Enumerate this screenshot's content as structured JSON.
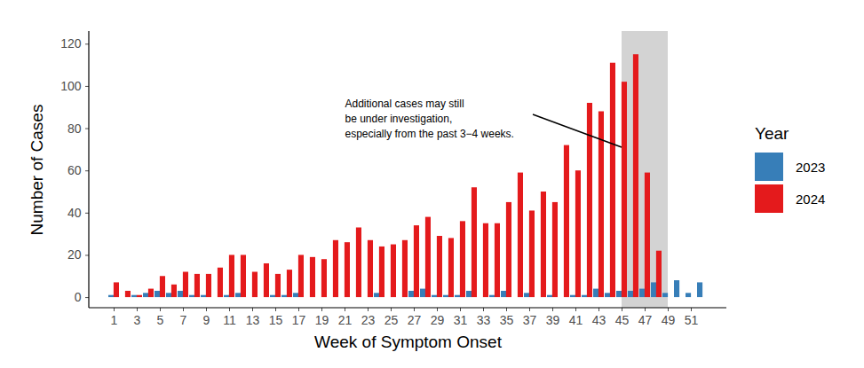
{
  "chart_data": {
    "type": "bar",
    "x_label": "Week of Symptom Onset",
    "y_label": "Number of Cases",
    "categories": [
      1,
      null,
      3,
      null,
      5,
      null,
      7,
      null,
      9,
      null,
      11,
      null,
      13,
      null,
      15,
      null,
      17,
      null,
      19,
      null,
      21,
      null,
      23,
      null,
      25,
      null,
      27,
      null,
      29,
      null,
      31,
      null,
      33,
      null,
      35,
      null,
      37,
      null,
      39,
      null,
      41,
      null,
      43,
      null,
      45,
      null,
      47,
      null,
      49,
      null,
      51,
      null
    ],
    "series": [
      {
        "name": "2023",
        "color": "#377EB8",
        "values": [
          1,
          0,
          1,
          2,
          3,
          2,
          3,
          1,
          1,
          0,
          1,
          2,
          0,
          0,
          1,
          1,
          2,
          0,
          0,
          0,
          0,
          0,
          0,
          2,
          0,
          0,
          3,
          4,
          1,
          1,
          1,
          3,
          0,
          1,
          3,
          0,
          2,
          0,
          1,
          0,
          1,
          1,
          4,
          2,
          3,
          3,
          4,
          7,
          2,
          8,
          2,
          7
        ]
      },
      {
        "name": "2024",
        "color": "#E41A1C",
        "values": [
          7,
          3,
          1,
          4,
          10,
          6,
          12,
          11,
          11,
          14,
          20,
          20,
          12,
          16,
          11,
          13,
          20,
          19,
          18,
          27,
          26,
          33,
          27,
          24,
          25,
          27,
          34,
          38,
          29,
          28,
          36,
          52,
          35,
          35,
          45,
          59,
          41,
          50,
          45,
          72,
          60,
          92,
          88,
          111,
          102,
          115,
          59,
          22,
          null,
          null,
          null,
          null
        ]
      }
    ],
    "ylim": [
      -5,
      126
    ],
    "yticks": [
      0,
      20,
      40,
      60,
      80,
      100,
      120
    ],
    "legend": "right",
    "legend_title": "Year",
    "highlight_weeks": [
      45,
      49
    ],
    "annotations": [
      {
        "text": "Additional cases may still\nbe under investigation,\nespecially from the past 3−4 weeks.",
        "x": 45,
        "y": 71
      }
    ]
  }
}
